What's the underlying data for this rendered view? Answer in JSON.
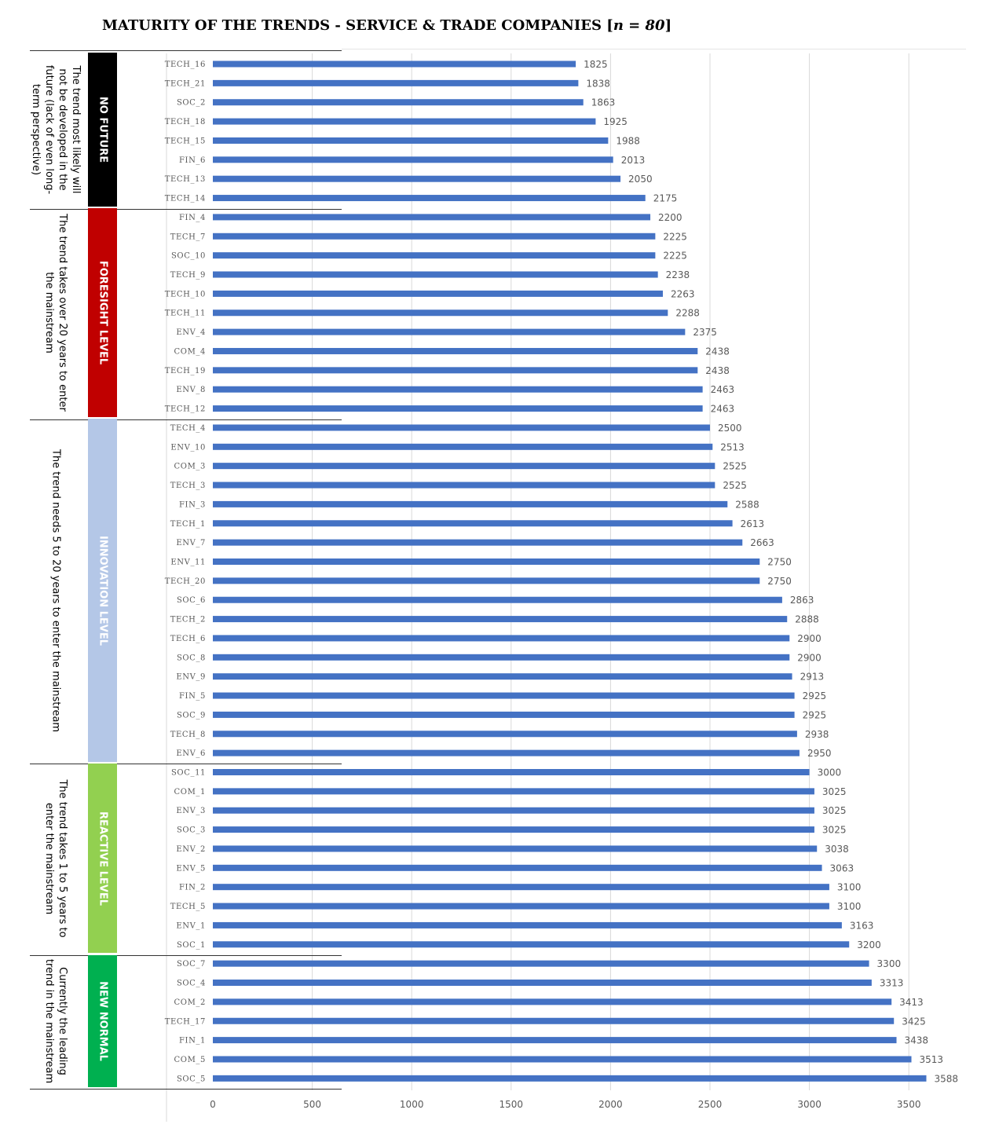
{
  "chart_data": {
    "type": "bar",
    "orientation": "horizontal",
    "title": {
      "main": "MATURITY OF THE TRENDS - SERVICE & TRADE COMPANIES [",
      "n_label": "n = 80",
      "end": "]"
    },
    "xlim": [
      0,
      3750
    ],
    "xticks": [
      0,
      500,
      1000,
      1500,
      2000,
      2500,
      3000,
      3500
    ],
    "grid": "vertical",
    "bar_color": "#4472c4",
    "categories": [
      "TECH_16",
      "TECH_21",
      "SOC_2",
      "TECH_18",
      "TECH_15",
      "FIN_6",
      "TECH_13",
      "TECH_14",
      "FIN_4",
      "TECH_7",
      "SOC_10",
      "TECH_9",
      "TECH_10",
      "TECH_11",
      "ENV_4",
      "COM_4",
      "TECH_19",
      "ENV_8",
      "TECH_12",
      "TECH_4",
      "ENV_10",
      "COM_3",
      "TECH_3",
      "FIN_3",
      "TECH_1",
      "ENV_7",
      "ENV_11",
      "TECH_20",
      "SOC_6",
      "TECH_2",
      "TECH_6",
      "SOC_8",
      "ENV_9",
      "FIN_5",
      "SOC_9",
      "TECH_8",
      "ENV_6",
      "SOC_11",
      "COM_1",
      "ENV_3",
      "SOC_3",
      "ENV_2",
      "ENV_5",
      "FIN_2",
      "TECH_5",
      "ENV_1",
      "SOC_1",
      "SOC_7",
      "SOC_4",
      "COM_2",
      "TECH_17",
      "FIN_1",
      "COM_5",
      "SOC_5"
    ],
    "values": [
      1825,
      1838,
      1863,
      1925,
      1988,
      2013,
      2050,
      2175,
      2200,
      2225,
      2225,
      2238,
      2263,
      2288,
      2375,
      2438,
      2438,
      2463,
      2463,
      2500,
      2513,
      2525,
      2525,
      2588,
      2613,
      2663,
      2750,
      2750,
      2863,
      2888,
      2900,
      2900,
      2913,
      2925,
      2925,
      2938,
      2950,
      3000,
      3025,
      3025,
      3025,
      3038,
      3063,
      3100,
      3100,
      3163,
      3200,
      3300,
      3313,
      3413,
      3425,
      3438,
      3513,
      3588
    ],
    "groups": [
      {
        "name": "NO FUTURE",
        "color": "#000000",
        "start": 0,
        "count": 8,
        "description": "The trend most likely will not be developed in the future (lack of even long-term perspective)"
      },
      {
        "name": "FORESIGHT LEVEL",
        "color": "#c00000",
        "start": 8,
        "count": 11,
        "description": "The trend takes over 20 years to enter the mainstream"
      },
      {
        "name": "INNOVATION LEVEL",
        "color": "#b4c7e7",
        "start": 19,
        "count": 18,
        "description": "The trend needs 5 to 20 years to enter the mainstream"
      },
      {
        "name": "REACTIVE LEVEL",
        "color": "#92d050",
        "start": 37,
        "count": 10,
        "description": "The trend takes 1 to 5 years to enter the mainstream"
      },
      {
        "name": "NEW NORMAL",
        "color": "#00b050",
        "start": 47,
        "count": 7,
        "description": "Currently the leading trend in the mainstream"
      }
    ]
  }
}
